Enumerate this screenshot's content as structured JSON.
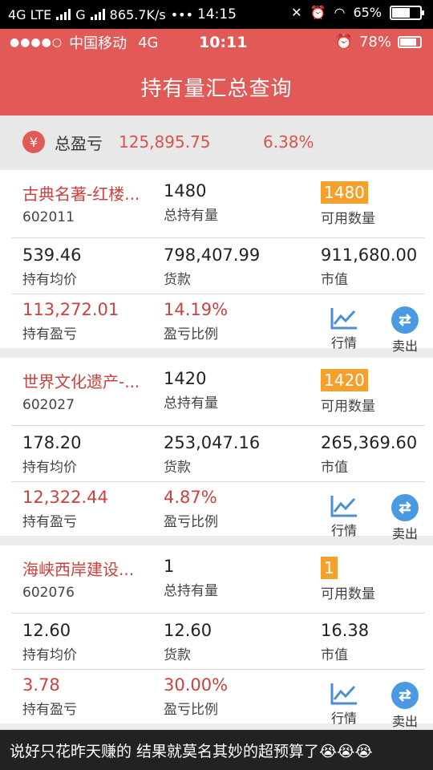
{
  "outer_status": {
    "network": "4G LTE",
    "network2": "G",
    "speed": "865.7K/s",
    "more": "•••",
    "time": "14:15",
    "battery": "65%"
  },
  "inner_status": {
    "dots": "●●●●○",
    "carrier": "中国移动",
    "network": "4G",
    "time": "10:11",
    "battery": "78%"
  },
  "header": {
    "title": "持有量汇总查询"
  },
  "total": {
    "icon": "¥",
    "label": "总盈亏",
    "value": "125,895.75",
    "percent": "6.38%"
  },
  "labels": {
    "total_hold": "总持有量",
    "available": "可用数量",
    "avg_price": "持有均价",
    "cost": "货款",
    "market_value": "市值",
    "profit": "持有盈亏",
    "ratio": "盈亏比例",
    "quote": "行情",
    "sell": "卖出"
  },
  "holdings": [
    {
      "name": "古典名著-红楼...",
      "code": "602011",
      "total_hold": "1480",
      "available": "1480",
      "avg_price": "539.46",
      "cost": "798,407.99",
      "market_value": "911,680.00",
      "profit": "113,272.01",
      "ratio": "14.19%"
    },
    {
      "name": "世界文化遗产-...",
      "code": "602027",
      "total_hold": "1420",
      "available": "1420",
      "avg_price": "178.20",
      "cost": "253,047.16",
      "market_value": "265,369.60",
      "profit": "12,322.44",
      "ratio": "4.87%"
    },
    {
      "name": "海峡西岸建设...",
      "code": "602076",
      "total_hold": "1",
      "available": "1",
      "avg_price": "12.60",
      "cost": "12.60",
      "market_value": "16.38",
      "profit": "3.78",
      "ratio": "30.00%"
    }
  ],
  "caption": "说好只花昨天赚的 结果就莫名其妙的超预算了😭😭😭",
  "colors": {
    "header": "#e15a57",
    "accent_red": "#c9423f",
    "badge": "#f3a12c",
    "sell_blue": "#4a9ae2"
  }
}
